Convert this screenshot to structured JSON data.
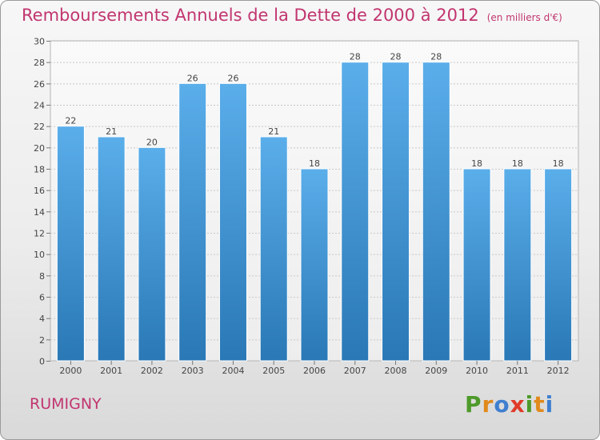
{
  "chart_data": {
    "type": "bar",
    "title": "Remboursements Annuels de la Dette de 2000 à 2012",
    "subtitle": "(en milliers d'€)",
    "categories": [
      "2000",
      "2001",
      "2002",
      "2003",
      "2004",
      "2005",
      "2006",
      "2007",
      "2008",
      "2009",
      "2010",
      "2011",
      "2012"
    ],
    "values": [
      22,
      21,
      20,
      26,
      26,
      21,
      18,
      28,
      28,
      28,
      18,
      18,
      18
    ],
    "ylim": [
      0,
      30
    ],
    "yticks": [
      0,
      2,
      4,
      6,
      8,
      10,
      12,
      14,
      16,
      18,
      20,
      22,
      24,
      26,
      28,
      30
    ],
    "grid": true,
    "colors": {
      "bar_top": "#5aaeea",
      "bar_bottom": "#2a78b6",
      "text": "#c1356f"
    }
  },
  "commune": "RUMIGNY",
  "logo": {
    "text": "Proxiti",
    "letters": [
      {
        "ch": "P",
        "color": "#4d9a2a"
      },
      {
        "ch": "r",
        "color": "#e08a1c"
      },
      {
        "ch": "o",
        "color": "#3f7fcf"
      },
      {
        "ch": "x",
        "color": "#e03a2a"
      },
      {
        "ch": "i",
        "color": "#4d9a2a"
      },
      {
        "ch": "t",
        "color": "#e08a1c"
      },
      {
        "ch": "i",
        "color": "#3f7fcf"
      }
    ]
  }
}
